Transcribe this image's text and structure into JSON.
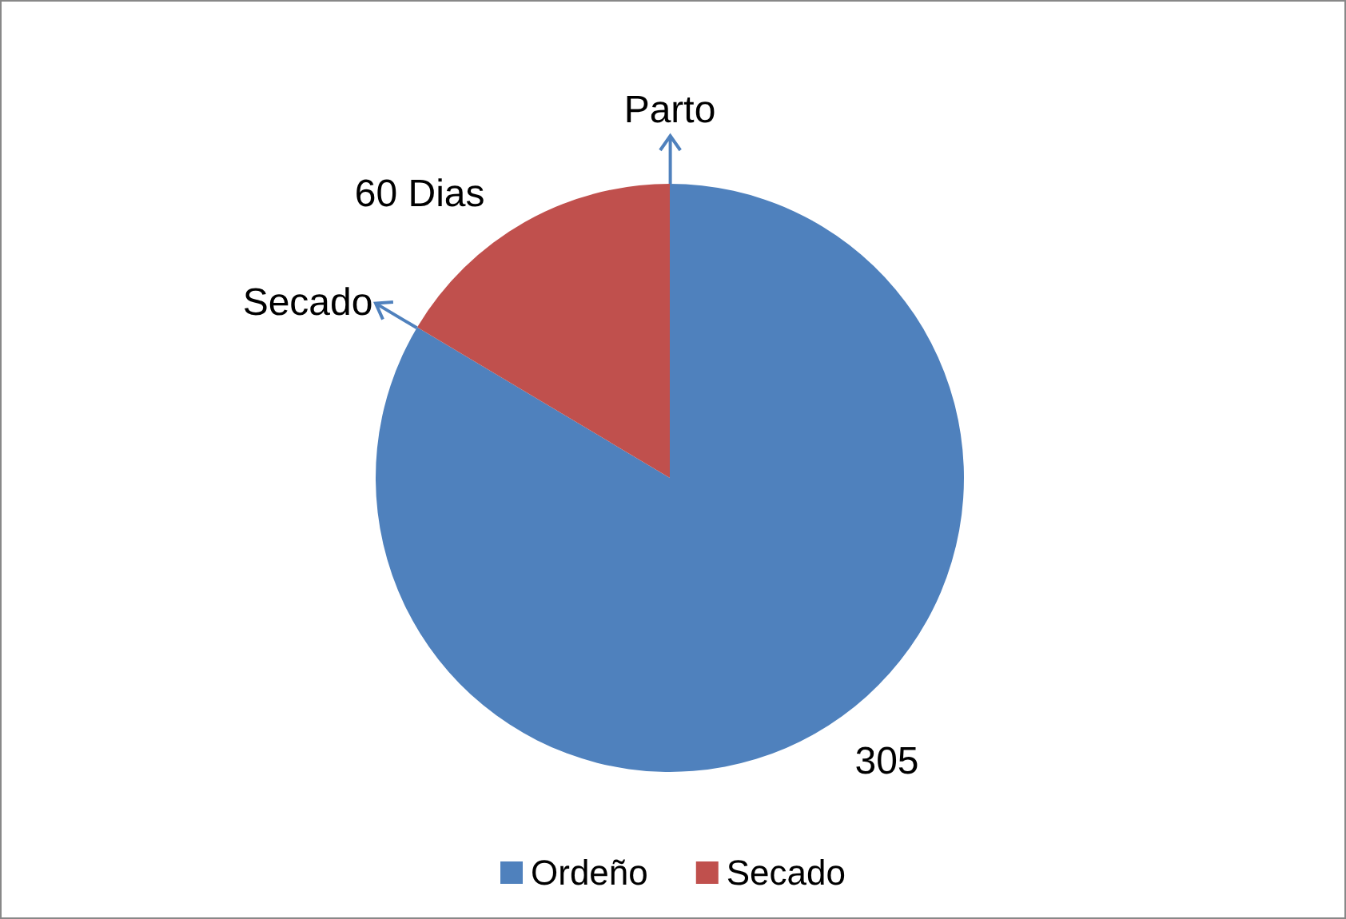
{
  "chart_data": {
    "type": "pie",
    "categories": [
      "Ordeño",
      "Secado"
    ],
    "values": [
      305,
      60
    ],
    "colors": [
      "#4f81bd",
      "#c0504d"
    ],
    "value_labels": [
      "305",
      "60 Dias"
    ],
    "annotations": [
      "Parto",
      "Secado"
    ],
    "legend": "bottom"
  }
}
